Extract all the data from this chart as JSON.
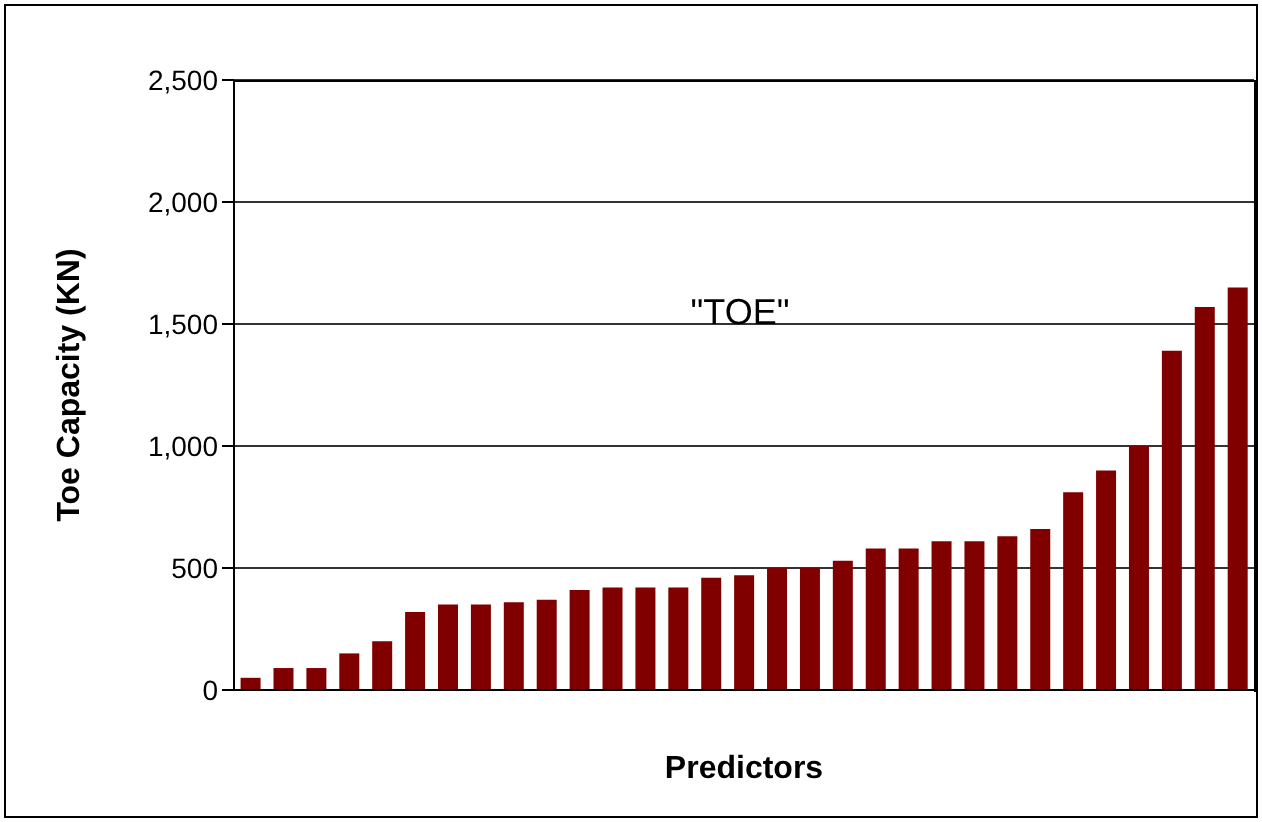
{
  "chart_data": {
    "type": "bar",
    "xlabel": "Predictors",
    "ylabel": "Toe Capacity  (KN)",
    "annotations": [
      "\"TOE\""
    ],
    "categories": [
      null,
      null,
      null,
      null,
      null,
      null,
      null,
      null,
      null,
      null,
      null,
      null,
      null,
      null,
      null,
      null,
      null,
      null,
      null,
      null,
      null,
      null,
      null,
      null,
      null,
      null,
      null,
      null,
      null,
      null,
      null
    ],
    "values": [
      50,
      90,
      90,
      150,
      200,
      320,
      350,
      350,
      360,
      370,
      410,
      420,
      420,
      420,
      460,
      470,
      500,
      500,
      530,
      580,
      580,
      610,
      610,
      630,
      660,
      810,
      900,
      1000,
      1390,
      1570,
      1650
    ],
    "color": "#800000",
    "ylim": [
      0,
      2500
    ],
    "yticks": [
      0,
      500,
      {
        "value": 1000,
        "label": "1,000"
      },
      {
        "value": 1500,
        "label": "1,500"
      },
      {
        "value": 2000,
        "label": "2,000"
      },
      {
        "value": 2500,
        "label": "2,500"
      }
    ],
    "grid": "y",
    "legend": false
  }
}
